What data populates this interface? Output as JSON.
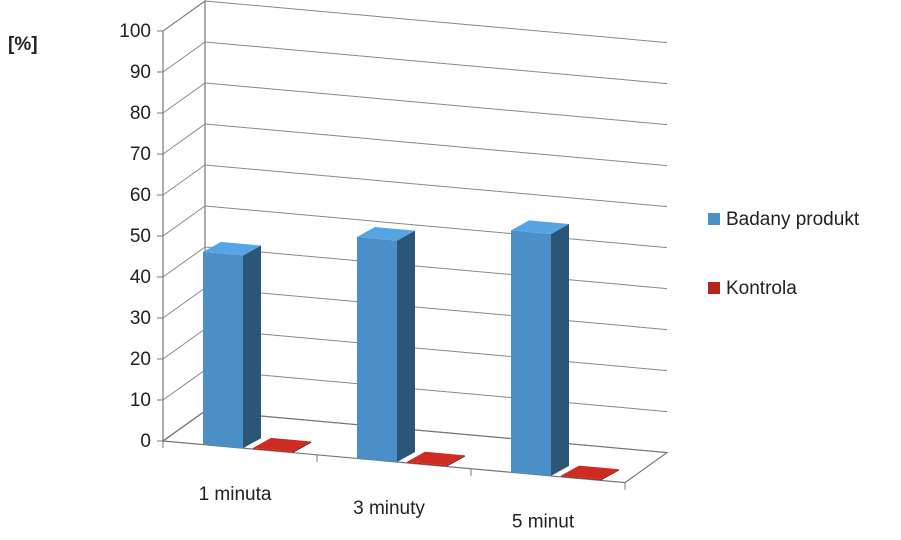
{
  "chart_data": {
    "type": "bar",
    "title": "",
    "ylabel": "[%]",
    "ylim": [
      0,
      100
    ],
    "yticks": [
      "0",
      "10",
      "20",
      "30",
      "40",
      "50",
      "60",
      "70",
      "80",
      "90",
      "100"
    ],
    "categories": [
      "1 minuta",
      "3 minuty",
      "5 minut"
    ],
    "series": [
      {
        "name": "Badany produkt",
        "values": [
          47,
          54,
          59
        ],
        "color": "#4a8fc8"
      },
      {
        "name": "Kontrola",
        "values": [
          0.3,
          0.3,
          0.3
        ],
        "color": "#b3261e"
      }
    ],
    "grid": true,
    "legend_position": "right",
    "style": "3d-column"
  }
}
